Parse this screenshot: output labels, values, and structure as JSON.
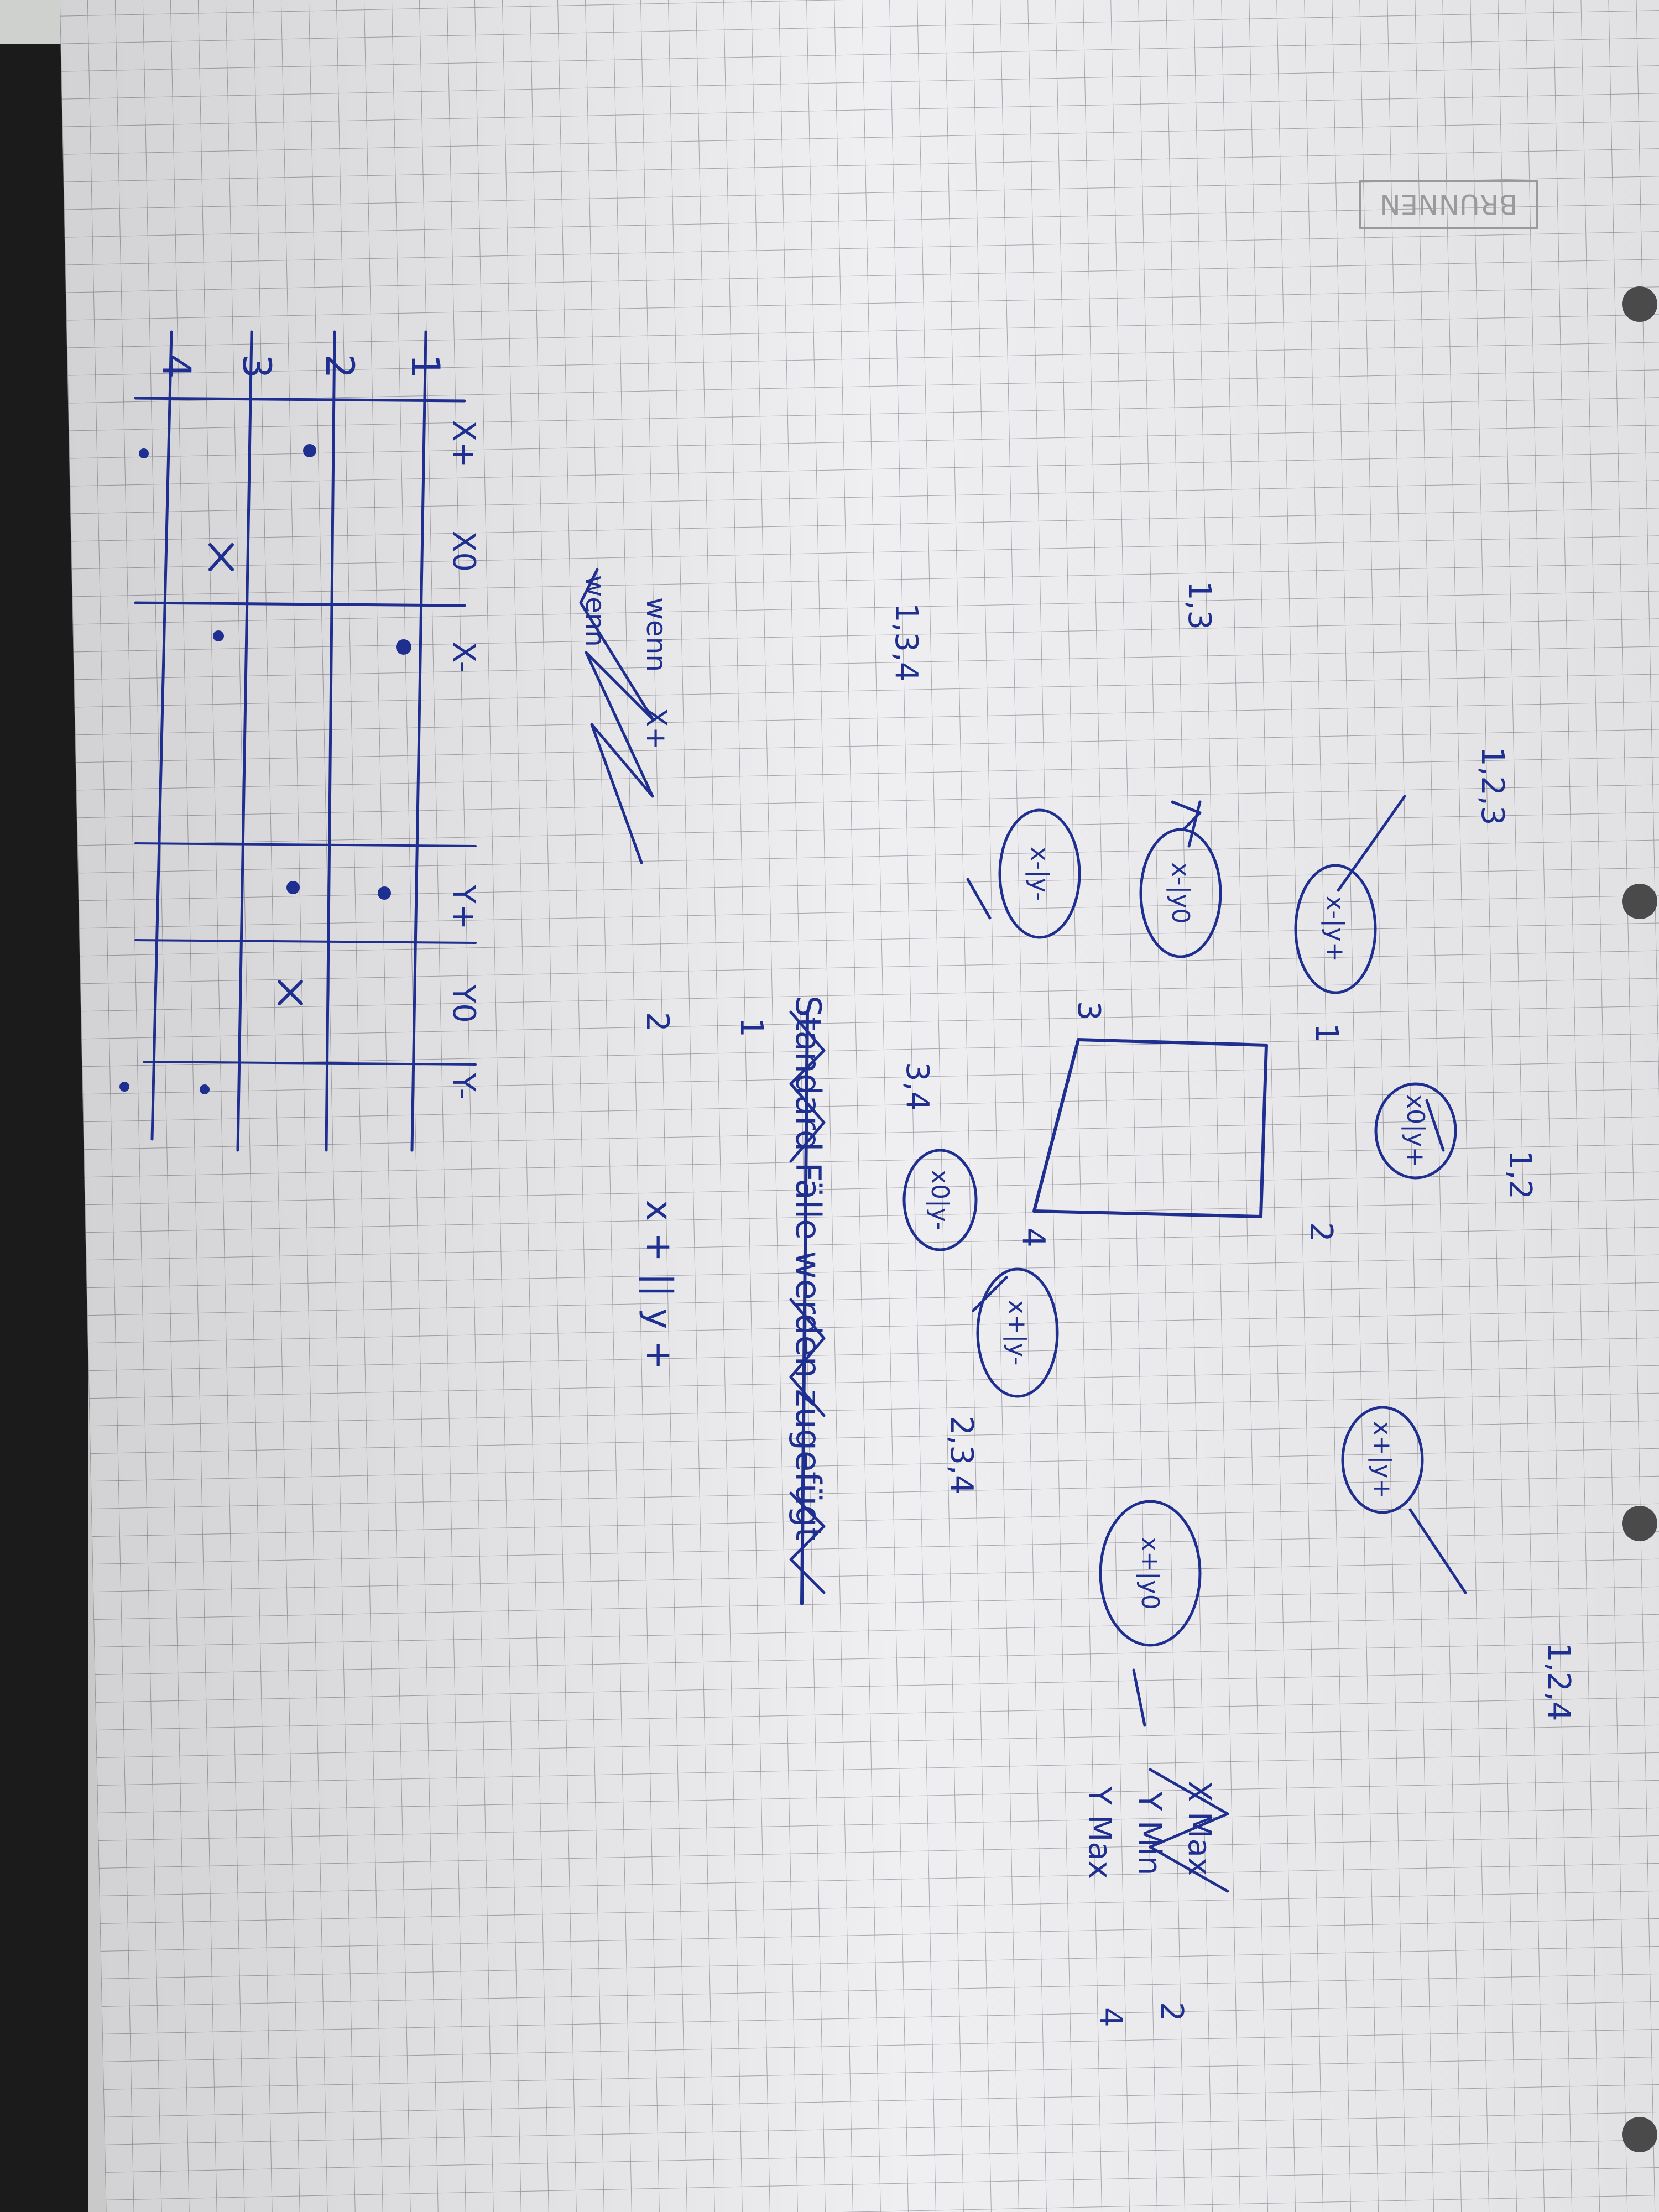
{
  "brand_logo": {
    "text": "BRUNNEN",
    "color": "#9a9a9a"
  },
  "ink_color": "#1f2f8f",
  "grid_table": {
    "row_labels": [
      "1",
      "2",
      "3",
      "4"
    ],
    "column_headers": [
      "X+",
      "X0",
      "X-",
      "Y+",
      "Y0",
      "Y-"
    ]
  },
  "annotations": {
    "a_1_3": "1,3",
    "a_1_3_4": "1,3,4",
    "a_1_2_3": "1,2,3",
    "a_1_2": "1,2",
    "a_2_3_4": "2,3,4",
    "a_1_2_4": "1,2,4",
    "a_3_4": "3,4",
    "wenn_1": "wenn",
    "wenn_2": "wenn",
    "xplus": "X+",
    "num_1": "1",
    "num_2": "2",
    "xplus_or_yplus": "x +   ||   y +",
    "corner_1": "1",
    "corner_2": "2",
    "corner_3": "3",
    "corner_4": "4",
    "crossed_note": "Standard Fälle werden zugefügt"
  },
  "bubbles": [
    "x-|y+",
    "x-|y0",
    "x-|y-",
    "x0|y+",
    "x0|y-",
    "x+|y-",
    "x+|y+",
    "x+|y0"
  ],
  "max_list": [
    "X Max",
    "Y Min",
    "Y Max"
  ],
  "max_numbers": [
    "2",
    "4"
  ]
}
